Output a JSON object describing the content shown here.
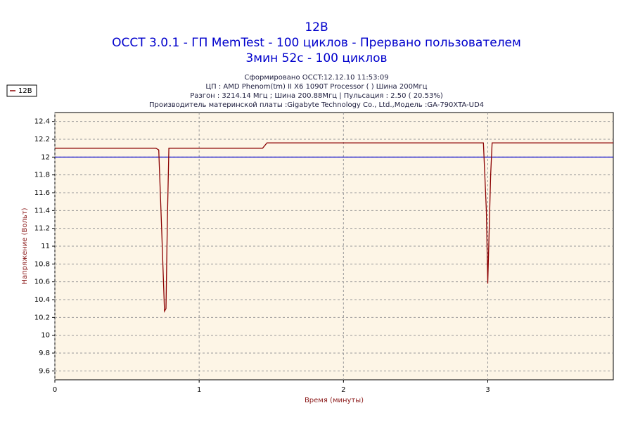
{
  "chart_data": {
    "type": "line",
    "title": [
      "12В",
      "OCCT 3.0.1 - ГП MemTest - 100 циклов - Прервано пользователем",
      "3мин 52с - 100 циклов"
    ],
    "subtitle": [
      "Сформировано OCCT:12.12.10 11:53:09",
      "ЦП : AMD Phenom(tm) II X6 1090T Processor (  ) Шина 200Мгц",
      "Разгон : 3214.14 Мгц ; Шина 200.88Мгц | Пульсация : 2.50 ( 20.53%)",
      "Производитель материнской платы :Gigabyte Technology Co., Ltd.,Модель :GA-790XTA-UD4"
    ],
    "x_label": "Время (минуты)",
    "y_label": "Напряжение (Вольт)",
    "x": [
      0,
      0.7,
      0.72,
      0.74,
      0.76,
      0.77,
      0.78,
      0.79,
      1.44,
      1.47,
      2.97,
      2.99,
      3.0,
      3.02,
      3.03,
      3.87
    ],
    "series": [
      {
        "name": "12В",
        "color": "#8b0000",
        "values": [
          12.1,
          12.1,
          12.08,
          11.2,
          10.27,
          10.3,
          11.3,
          12.1,
          12.1,
          12.16,
          12.16,
          11.4,
          10.58,
          11.8,
          12.16,
          12.16
        ]
      }
    ],
    "reference_line": {
      "value": 12,
      "color": "#0000cc"
    },
    "xlim": [
      0,
      3.87
    ],
    "ylim": [
      9.5,
      12.5
    ],
    "xticks": [
      0,
      1,
      2,
      3
    ],
    "yticks": [
      9.6,
      9.8,
      10,
      10.2,
      10.4,
      10.6,
      10.8,
      11,
      11.2,
      11.4,
      11.6,
      11.8,
      12,
      12.2,
      12.4
    ],
    "grid": true,
    "legend": "top-left"
  }
}
